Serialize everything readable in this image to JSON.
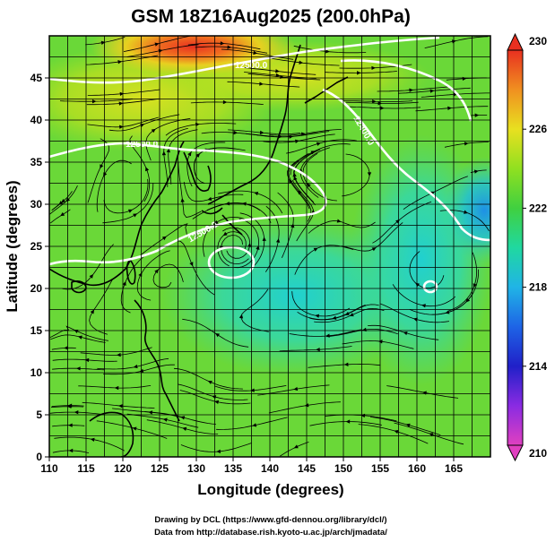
{
  "title": "GSM 18Z16Aug2025 (200.0hPa)",
  "xlabel": "Longitude (degrees)",
  "ylabel": "Latitude  (degrees)",
  "credits": [
    "Drawing by DCL (https://www.gfd-dennou.org/library/dcl/)",
    "Data from http://database.rish.kyoto-u.ac.jp/arch/jmadata/"
  ],
  "chart_data": {
    "type": "heatmap",
    "variable": "temperature with streamlines and geopotential height contours",
    "xlim": [
      110,
      170
    ],
    "ylim": [
      0,
      50
    ],
    "x_ticks": [
      110,
      115,
      120,
      125,
      130,
      135,
      140,
      145,
      150,
      155,
      160,
      165
    ],
    "y_ticks": [
      0,
      5,
      10,
      15,
      20,
      25,
      30,
      35,
      40,
      45
    ],
    "colorbar": {
      "min": 210,
      "max": 230,
      "ticks": [
        210,
        214,
        218,
        222,
        226,
        230
      ]
    },
    "contour_labels": [
      "12500.0",
      "12500.0",
      "12400.0",
      "12500.0"
    ],
    "colors": {
      "grid": "#000000",
      "contour": "#ffffff",
      "coast": "#000000"
    }
  }
}
